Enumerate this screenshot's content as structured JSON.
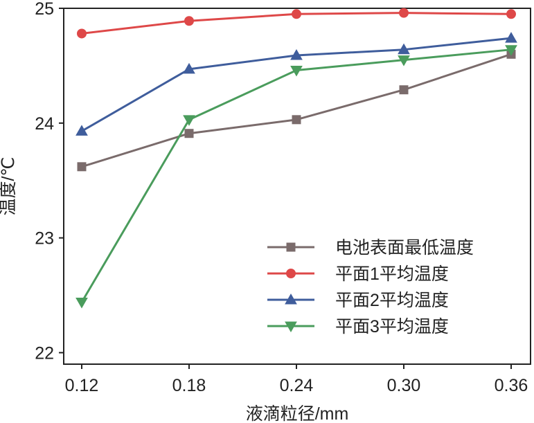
{
  "chart_data": {
    "type": "line",
    "title": "",
    "xlabel": "液滴粒径/mm",
    "ylabel": "温度/℃",
    "x": [
      0.12,
      0.18,
      0.24,
      0.3,
      0.36
    ],
    "x_tick_labels": [
      "0.12",
      "0.18",
      "0.24",
      "0.30",
      "0.36"
    ],
    "xlim": [
      0.12,
      0.36
    ],
    "ylim": [
      21.9,
      25.0
    ],
    "y_ticks": [
      22,
      23,
      24,
      25
    ],
    "y_tick_labels": [
      "22",
      "23",
      "24",
      "25"
    ],
    "grid": false,
    "legend_position": "lower-right",
    "series": [
      {
        "name": "电池表面最低温度",
        "color": "#7a6b6b",
        "marker": "square",
        "values": [
          23.62,
          23.91,
          24.03,
          24.29,
          24.6
        ]
      },
      {
        "name": "平面1平均温度",
        "color": "#de4848",
        "marker": "circle",
        "values": [
          24.78,
          24.89,
          24.95,
          24.96,
          24.95
        ]
      },
      {
        "name": "平面2平均温度",
        "color": "#3f5d9c",
        "marker": "triangle-up",
        "values": [
          23.93,
          24.47,
          24.59,
          24.64,
          24.74
        ]
      },
      {
        "name": "平面3平均温度",
        "color": "#4a9c5c",
        "marker": "triangle-down",
        "values": [
          22.44,
          24.03,
          24.46,
          24.55,
          24.64
        ]
      }
    ]
  }
}
